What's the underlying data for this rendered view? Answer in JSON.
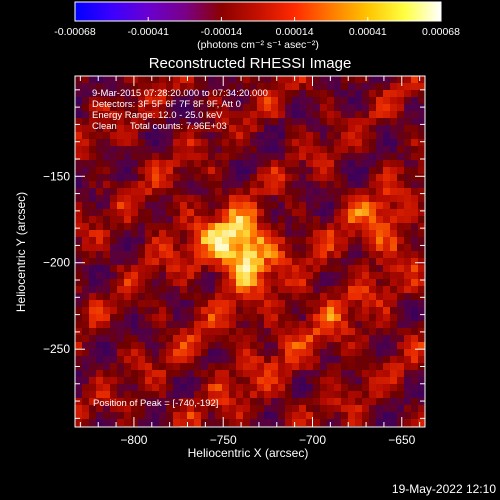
{
  "colorbar": {
    "tick_labels": [
      "-0.00068",
      "-0.00041",
      "-0.00014",
      "0.00014",
      "0.00041",
      "0.00068"
    ],
    "unit_label": "(photons cm⁻² s⁻¹ asec⁻²)",
    "colors": [
      "#0000ff",
      "#3b00ff",
      "#6a00d0",
      "#7a0088",
      "#8b0000",
      "#c41000",
      "#ff2a00",
      "#ff7a00",
      "#ffc400",
      "#ffff40",
      "#ffffff"
    ]
  },
  "chart_data": {
    "type": "heatmap",
    "title": "Reconstructed RHESSI Image",
    "xlabel": "Heliocentric X (arcsec)",
    "ylabel": "Heliocentric Y (arcsec)",
    "x_ticks": [
      -800,
      -750,
      -700,
      -650
    ],
    "y_ticks": [
      -150,
      -200,
      -250
    ],
    "x_tick_labels": [
      "−800",
      "−750",
      "−700",
      "−650"
    ],
    "y_tick_labels": [
      "−150",
      "−200",
      "−250"
    ],
    "xlim": [
      -833,
      -637
    ],
    "ylim": [
      -295,
      -92
    ],
    "peak": {
      "x": -740,
      "y": -192
    },
    "annotations": [
      "9-Mar-2015 07:28:20.000 to 07:34:20.000",
      "Detectors: 3F 5F 6F 7F 8F 9F, Att 0",
      "Energy Range: 12.0 - 25.0 keV",
      "Clean     Total counts: 7.96E+03"
    ],
    "peak_label": "Position of Peak = [-740,-192]",
    "grid": false
  },
  "footer": {
    "timestamp": "19-May-2022 12:10"
  }
}
